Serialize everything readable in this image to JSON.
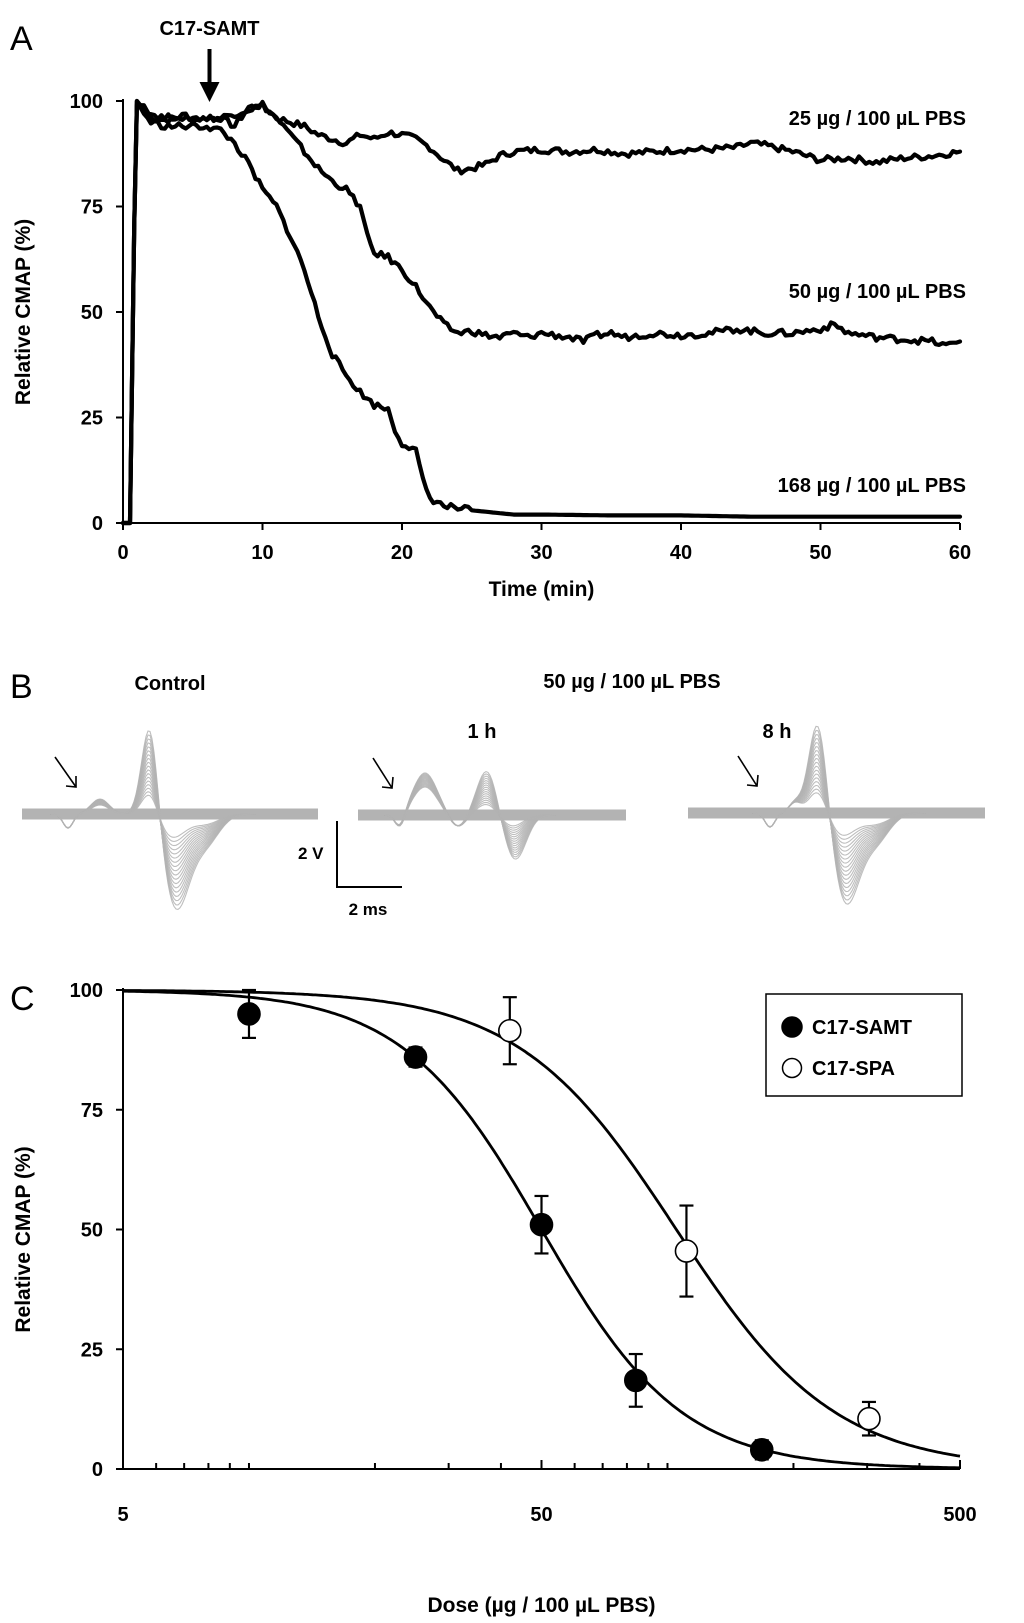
{
  "chart_data": [
    {
      "panel": "A",
      "type": "line",
      "xlabel": "Time (min)",
      "ylabel": "Relative CMAP (%)",
      "xlim": [
        0,
        60
      ],
      "ylim": [
        0,
        100
      ],
      "xticks": [
        0,
        10,
        20,
        30,
        40,
        50,
        60
      ],
      "yticks": [
        0,
        25,
        50,
        75,
        100
      ],
      "annotation": {
        "text": "C17-SAMT",
        "x": 6.2,
        "arrow_from_y": 112,
        "arrow_to_y": 101
      },
      "series": [
        {
          "name": "25 µg / 100 µL PBS",
          "label_y": 96,
          "points": [
            [
              0,
              0
            ],
            [
              0.5,
              0
            ],
            [
              0.8,
              70
            ],
            [
              1,
              99
            ],
            [
              1.5,
              99
            ],
            [
              2,
              96
            ],
            [
              3,
              95.5
            ],
            [
              4,
              96
            ],
            [
              5,
              95.5
            ],
            [
              6,
              96
            ],
            [
              7,
              96
            ],
            [
              8,
              94
            ],
            [
              9,
              98.5
            ],
            [
              10,
              99
            ],
            [
              11,
              96
            ],
            [
              12,
              95
            ],
            [
              13,
              94
            ],
            [
              14,
              92
            ],
            [
              15,
              91
            ],
            [
              16,
              90
            ],
            [
              17,
              92
            ],
            [
              18,
              91
            ],
            [
              19,
              92.5
            ],
            [
              20,
              92
            ],
            [
              21,
              91
            ],
            [
              22,
              89
            ],
            [
              23,
              86
            ],
            [
              24,
              83.5
            ],
            [
              25,
              84
            ],
            [
              26,
              85
            ],
            [
              27,
              87
            ],
            [
              28,
              88
            ],
            [
              30,
              88.5
            ],
            [
              32,
              88
            ],
            [
              34,
              88.5
            ],
            [
              36,
              87.5
            ],
            [
              38,
              88
            ],
            [
              40,
              88.5
            ],
            [
              42,
              88.5
            ],
            [
              44,
              89
            ],
            [
              45,
              90
            ],
            [
              46,
              89.5
            ],
            [
              48,
              88
            ],
            [
              50,
              86
            ],
            [
              52,
              86.5
            ],
            [
              54,
              85.5
            ],
            [
              56,
              86.5
            ],
            [
              58,
              87
            ],
            [
              60,
              88
            ]
          ]
        },
        {
          "name": "50 µg / 100 µL PBS",
          "label_y": 55,
          "points": [
            [
              0,
              0
            ],
            [
              0.5,
              0
            ],
            [
              0.8,
              70
            ],
            [
              1,
              100
            ],
            [
              1.5,
              98
            ],
            [
              2,
              97
            ],
            [
              3,
              96
            ],
            [
              4,
              96.5
            ],
            [
              5,
              96
            ],
            [
              6,
              96
            ],
            [
              7,
              96
            ],
            [
              8,
              97
            ],
            [
              9,
              98
            ],
            [
              10,
              99
            ],
            [
              11,
              96
            ],
            [
              12,
              92
            ],
            [
              13,
              88
            ],
            [
              14,
              84
            ],
            [
              15,
              81
            ],
            [
              16,
              79
            ],
            [
              17,
              75
            ],
            [
              17.5,
              68
            ],
            [
              18,
              64
            ],
            [
              19,
              63
            ],
            [
              20,
              60
            ],
            [
              21,
              56
            ],
            [
              22,
              51
            ],
            [
              23,
              47
            ],
            [
              24,
              45
            ],
            [
              25,
              45.5
            ],
            [
              26,
              44.5
            ],
            [
              27,
              44
            ],
            [
              28,
              45
            ],
            [
              29,
              44
            ],
            [
              30,
              45
            ],
            [
              31,
              44.5
            ],
            [
              32,
              44
            ],
            [
              33,
              43
            ],
            [
              34,
              44.5
            ],
            [
              35,
              45
            ],
            [
              36,
              44
            ],
            [
              38,
              45
            ],
            [
              40,
              44.5
            ],
            [
              42,
              45
            ],
            [
              44,
              46
            ],
            [
              46,
              45
            ],
            [
              48,
              45
            ],
            [
              50,
              46
            ],
            [
              51,
              47
            ],
            [
              52,
              45
            ],
            [
              54,
              44
            ],
            [
              56,
              43.5
            ],
            [
              58,
              43
            ],
            [
              59,
              42
            ],
            [
              60,
              43
            ]
          ]
        },
        {
          "name": "168 µg / 100 µL PBS",
          "label_y": 9,
          "points": [
            [
              0,
              0
            ],
            [
              0.5,
              0
            ],
            [
              0.8,
              70
            ],
            [
              1,
              100
            ],
            [
              1.5,
              97
            ],
            [
              2,
              95
            ],
            [
              3,
              94
            ],
            [
              4,
              94
            ],
            [
              5,
              94
            ],
            [
              6,
              94
            ],
            [
              7,
              93
            ],
            [
              8,
              90
            ],
            [
              9,
              85
            ],
            [
              10,
              79
            ],
            [
              11,
              75
            ],
            [
              12,
              68
            ],
            [
              13,
              60
            ],
            [
              14,
              49
            ],
            [
              15,
              40
            ],
            [
              16,
              35
            ],
            [
              17,
              31
            ],
            [
              18,
              28
            ],
            [
              19,
              27
            ],
            [
              19.5,
              22
            ],
            [
              20,
              19
            ],
            [
              21,
              17
            ],
            [
              21.5,
              10
            ],
            [
              22,
              6
            ],
            [
              23,
              4
            ],
            [
              25,
              3
            ],
            [
              28,
              2
            ],
            [
              30,
              2
            ],
            [
              35,
              1.8
            ],
            [
              40,
              1.8
            ],
            [
              45,
              1.5
            ],
            [
              50,
              1.5
            ],
            [
              55,
              1.5
            ],
            [
              60,
              1.5
            ]
          ]
        }
      ]
    },
    {
      "panel": "B",
      "type": "line",
      "scale_bar": {
        "voltage": "2 V",
        "time": "2 ms"
      },
      "condition_label": "50 µg / 100 µL PBS",
      "traces": [
        {
          "name": "Control",
          "label": "Control"
        },
        {
          "name": "1 h",
          "label": "1 h"
        },
        {
          "name": "8 h",
          "label": "8 h"
        }
      ]
    },
    {
      "panel": "C",
      "type": "scatter",
      "xlabel": "Dose (µg / 100 µL PBS)",
      "ylabel": "Relative CMAP (%)",
      "xscale": "log",
      "xlim": [
        5,
        500
      ],
      "ylim": [
        0,
        100
      ],
      "xticks": [
        5,
        50,
        500
      ],
      "yticks": [
        0,
        25,
        50,
        75,
        100
      ],
      "legend_position": "top-right",
      "series": [
        {
          "name": "C17-SAMT",
          "marker": "filled-circle",
          "x": [
            10,
            25,
            50,
            84,
            168
          ],
          "y": [
            95,
            86,
            51,
            18.5,
            4
          ],
          "err": [
            5,
            2,
            6,
            5.5,
            2
          ],
          "fit": {
            "top": 100,
            "ec50": 50,
            "hill": 2.6
          }
        },
        {
          "name": "C17-SPA",
          "marker": "open-circle",
          "x": [
            42,
            111,
            303
          ],
          "y": [
            91.5,
            45.5,
            10.5
          ],
          "err": [
            7,
            9.5,
            3.5
          ],
          "fit": {
            "top": 100,
            "ec50": 105,
            "hill": 2.3
          }
        }
      ]
    }
  ]
}
